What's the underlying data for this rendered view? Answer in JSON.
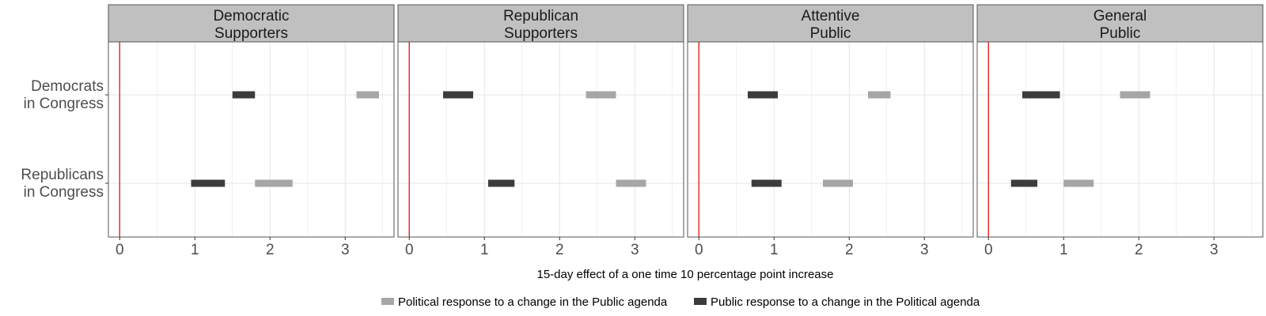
{
  "chart_data": {
    "type": "range-bar",
    "facets": [
      "Democratic\nSupporters",
      "Republican\nSupporters",
      "Attentive\nPublic",
      "General\nPublic"
    ],
    "categories": [
      "Democrats\nin Congress",
      "Republicans\nin Congress"
    ],
    "xlim": [
      -0.15,
      3.65
    ],
    "xticks": [
      0,
      1,
      2,
      3
    ],
    "reference_line": 0,
    "xlabel": "15-day effect of a one time 10 percentage point increase",
    "series": [
      {
        "name": "Political response to a change in the Public agenda",
        "color": "#a6a6a6",
        "ranges": [
          [
            [
              3.15,
              3.45
            ],
            [
              1.8,
              2.3
            ]
          ],
          [
            [
              2.35,
              2.75
            ],
            [
              2.75,
              3.15
            ]
          ],
          [
            [
              2.25,
              2.55
            ],
            [
              1.65,
              2.05
            ]
          ],
          [
            [
              1.75,
              2.15
            ],
            [
              1.0,
              1.4
            ]
          ]
        ]
      },
      {
        "name": "Public response to a change in the Political agenda",
        "color": "#3c3c3c",
        "ranges": [
          [
            [
              1.5,
              1.8
            ],
            [
              0.95,
              1.4
            ]
          ],
          [
            [
              0.45,
              0.85
            ],
            [
              1.05,
              1.4
            ]
          ],
          [
            [
              0.65,
              1.05
            ],
            [
              0.7,
              1.1
            ]
          ],
          [
            [
              0.45,
              0.95
            ],
            [
              0.3,
              0.65
            ]
          ]
        ]
      }
    ]
  },
  "colors": {
    "strip_background": "#c0c0c0",
    "panel_border": "#555555",
    "grid": "#e6e6e6",
    "reference_line": "#e8231f"
  }
}
